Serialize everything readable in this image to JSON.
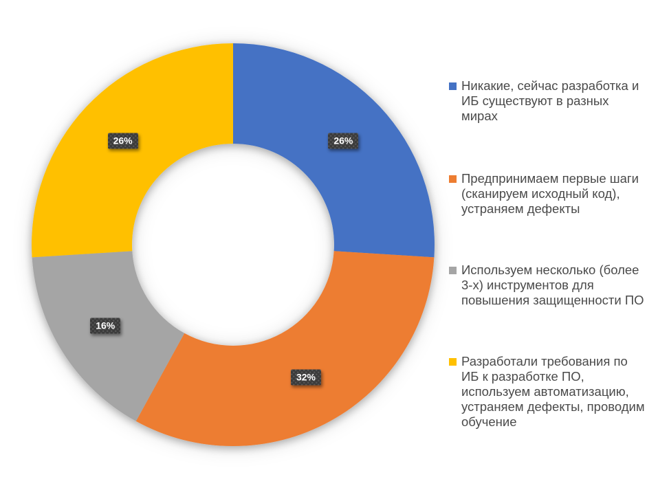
{
  "page": {
    "background_color": "#ffffff"
  },
  "chart_data": {
    "type": "pie",
    "subtype": "donut",
    "title": "",
    "categories": [
      "Никакие, сейчас разработка и ИБ существуют в разных мирах",
      "Предпринимаем первые шаги (сканируем исходный код), устраняем дефекты",
      "Используем несколько (более 3-х) инструментов для повышения защищенности ПО",
      "Разработали требования по ИБ к разработке ПО, используем автоматизацию, устраняем дефекты, проводим обучение"
    ],
    "values": [
      26,
      32,
      16,
      26
    ],
    "value_labels": [
      "26%",
      "32%",
      "16%",
      "26%"
    ],
    "colors": [
      "#4472C4",
      "#ED7D31",
      "#A5A5A5",
      "#FFC000"
    ],
    "start_angle_deg": 0,
    "direction": "clockwise",
    "hole_ratio": 0.5,
    "legend_position": "right",
    "grid": false,
    "data_label_style": {
      "text_color": "#FFFFFF",
      "background": "#3B3B3B"
    }
  },
  "legend": {
    "items": [
      {
        "label": "Никакие, сейчас разработка и ИБ существуют в разных мирах",
        "lines": [
          "Никакие, сейчас разработка и",
          "ИБ существуют в разных",
          "мирах"
        ],
        "color": "#4472C4"
      },
      {
        "label": "Предпринимаем первые шаги (сканируем исходный код), устраняем дефекты",
        "lines": [
          "Предпринимаем первые шаги",
          "(сканируем исходный код),",
          "устраняем дефекты"
        ],
        "color": "#ED7D31"
      },
      {
        "label": "Используем несколько (более 3-х) инструментов для повышения защищенности ПО",
        "lines": [
          "Используем несколько (более",
          "3-х) инструментов для",
          "повышения защищенности ПО"
        ],
        "color": "#A5A5A5"
      },
      {
        "label": "Разработали требования по ИБ к разработке ПО, используем автоматизацию, устраняем дефекты, проводим обучение",
        "lines": [
          "Разработали требования по",
          "ИБ к разработке ПО,",
          "используем автоматизацию,",
          "устраняем дефекты, проводим",
          "обучение"
        ],
        "color": "#FFC000"
      }
    ]
  }
}
